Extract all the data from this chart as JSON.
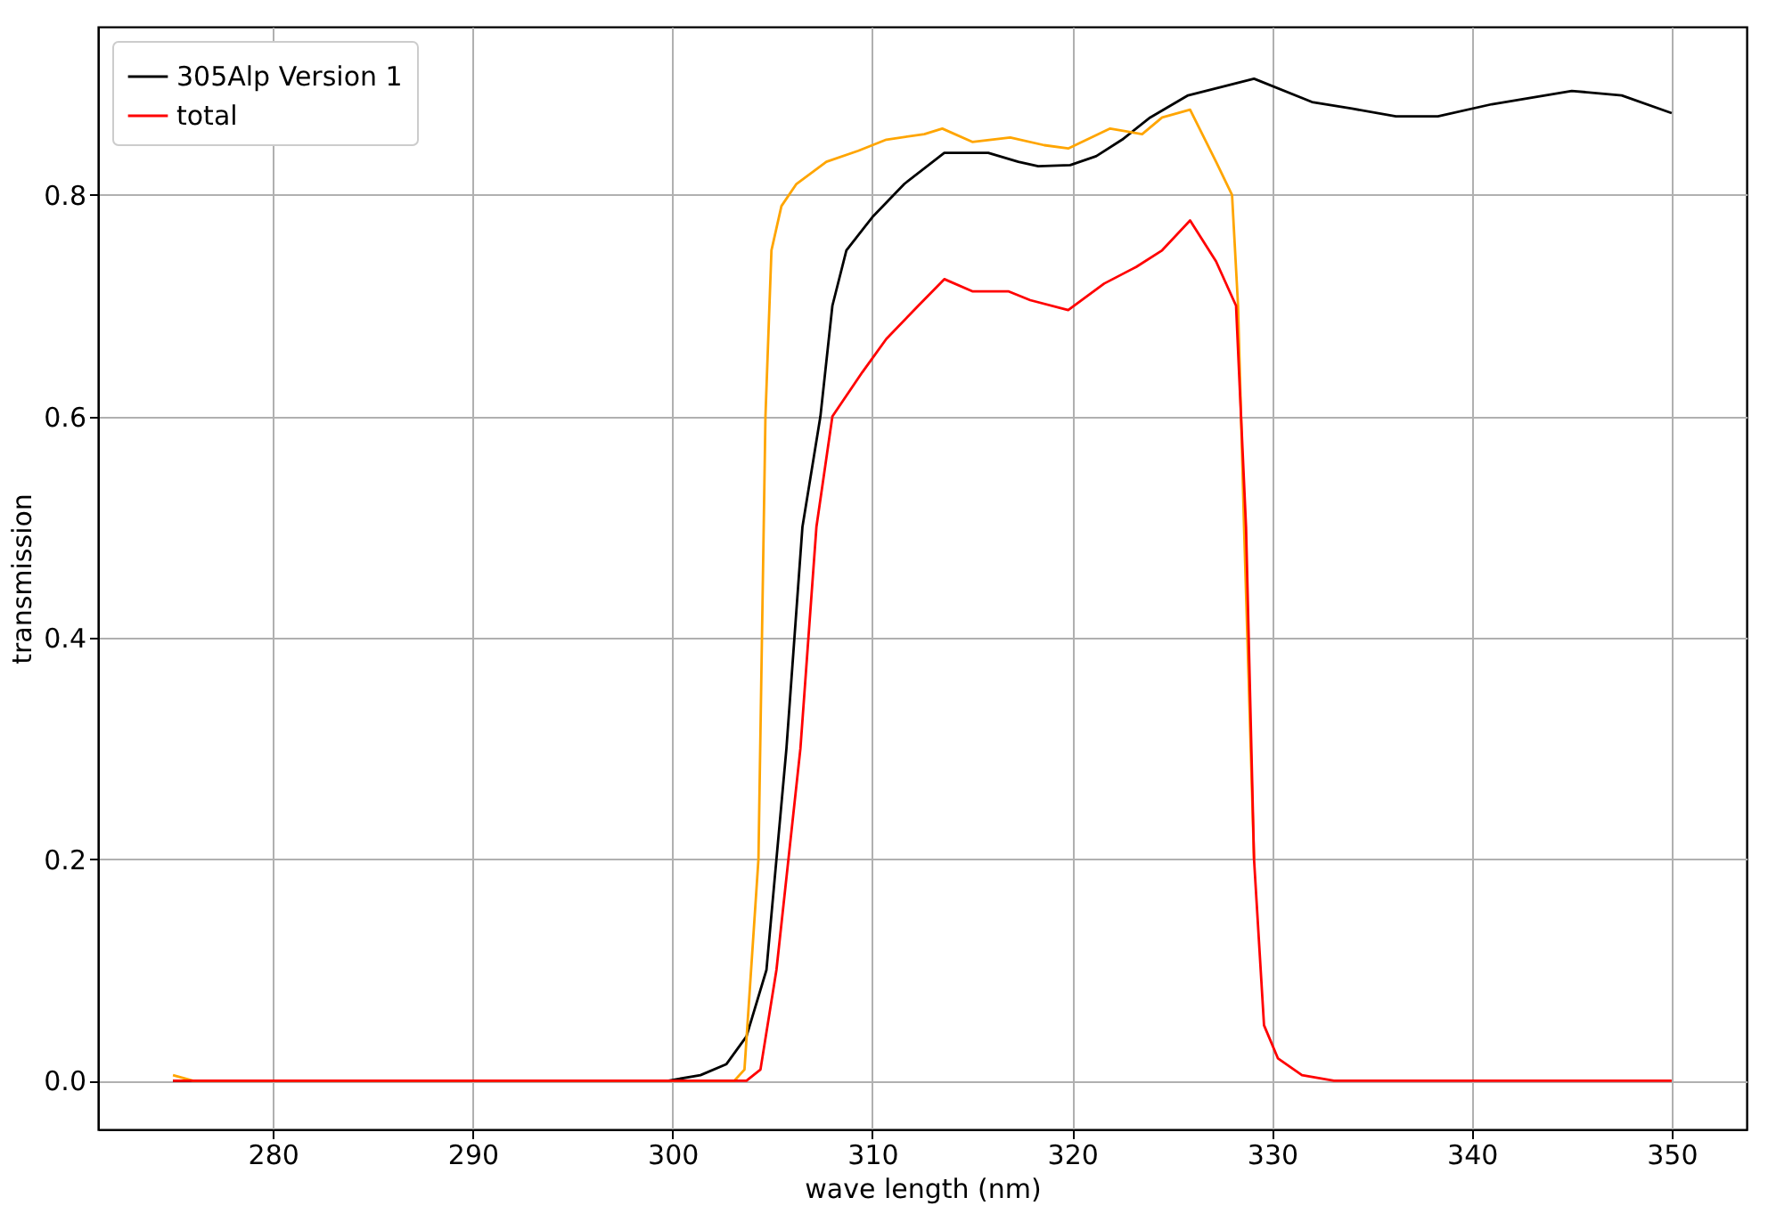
{
  "chart_data": {
    "type": "line",
    "xlabel": "wave length (nm)",
    "ylabel": "transmission",
    "xlim": [
      271.25,
      353.75
    ],
    "ylim": [
      -0.044,
      0.952
    ],
    "xticks": [
      280,
      290,
      300,
      310,
      320,
      330,
      340,
      350
    ],
    "yticks": [
      {
        "value": 0,
        "label": "0.0"
      },
      0.2,
      0.4,
      0.6,
      0.8
    ],
    "grid": true,
    "legend": "top left",
    "line_style": "solid",
    "marker": "none",
    "series": [
      {
        "name": "305Alp Version 1",
        "color": "#000000",
        "x": [
          275,
          290,
          299.8,
          301.4,
          302.7,
          303.7,
          304.7,
          305.7,
          306.5,
          307.4,
          308,
          308.7,
          310,
          311.6,
          313.6,
          315.8,
          317.3,
          318.3,
          319.9,
          321.2,
          322.5,
          323.9,
          325.8,
          329.1,
          332,
          334,
          336.2,
          338.3,
          341,
          345,
          347.5,
          350
        ],
        "values": [
          0,
          0,
          0,
          0.005,
          0.015,
          0.04,
          0.1,
          0.3,
          0.5,
          0.6,
          0.7,
          0.75,
          0.78,
          0.81,
          0.838,
          0.838,
          0.83,
          0.826,
          0.827,
          0.835,
          0.85,
          0.87,
          0.89,
          0.905,
          0.884,
          0.878,
          0.871,
          0.871,
          0.882,
          0.894,
          0.89,
          0.874
        ]
      },
      {
        "color": "#ffa500",
        "x": [
          275,
          276,
          290,
          303.1,
          303.6,
          304.3,
          304.65,
          304.95,
          305.45,
          306.2,
          307.7,
          309.3,
          310.7,
          312.6,
          313.5,
          315,
          316.9,
          318.6,
          319.8,
          321.9,
          323.5,
          324.5,
          325.9,
          327.2,
          328,
          328.3,
          328.6,
          329.1
        ],
        "values": [
          0.005,
          0,
          0,
          0,
          0.01,
          0.2,
          0.6,
          0.75,
          0.79,
          0.81,
          0.83,
          0.84,
          0.85,
          0.855,
          0.86,
          0.848,
          0.852,
          0.845,
          0.842,
          0.86,
          0.855,
          0.87,
          0.877,
          0.83,
          0.8,
          0.7,
          0.5,
          0.2
        ]
      },
      {
        "name": "total",
        "color": "#ff0000",
        "x": [
          275,
          290,
          303.7,
          304.4,
          305.2,
          306.4,
          307.2,
          308,
          309.5,
          310.7,
          312.3,
          313.6,
          315,
          316.8,
          317.9,
          319.8,
          321.6,
          323.2,
          324.5,
          325.9,
          327.2,
          328.2,
          328.7,
          329.1,
          329.6,
          330.3,
          331.5,
          333.1,
          350
        ],
        "values": [
          0,
          0,
          0,
          0.01,
          0.1,
          0.3,
          0.5,
          0.6,
          0.64,
          0.67,
          0.7,
          0.724,
          0.713,
          0.713,
          0.705,
          0.696,
          0.72,
          0.735,
          0.75,
          0.777,
          0.74,
          0.7,
          0.5,
          0.2,
          0.05,
          0.02,
          0.005,
          0,
          0
        ]
      }
    ]
  }
}
